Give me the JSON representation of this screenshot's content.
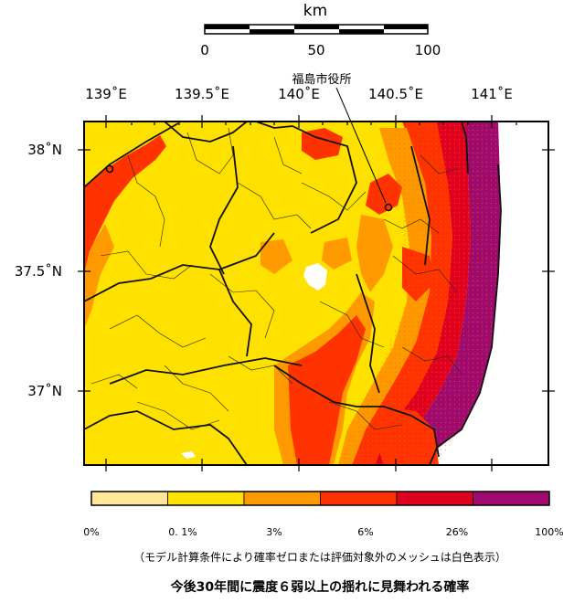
{
  "scale_bar": {
    "title": "km",
    "ticks": [
      "0",
      "50",
      "100"
    ]
  },
  "city_label": "福島市役所",
  "axes": {
    "longitude_labels": [
      "139˚E",
      "139.5˚E",
      "140˚E",
      "140.5˚E",
      "141˚E"
    ],
    "latitude_labels": [
      "38˚N",
      "37.5˚N",
      "37˚N"
    ]
  },
  "legend": {
    "ticks": [
      "0%",
      "0. 1%",
      "3%",
      "6%",
      "26%",
      "100%"
    ],
    "colors": [
      "#ffe699",
      "#ffe100",
      "#ff9900",
      "#ff3300",
      "#e00020",
      "#9e0a6e"
    ],
    "note": "（モデル計算条件により確率ゼロまたは評価対象外のメッシュは白色表示）"
  },
  "caption": "今後30年間に震度６弱以上の揺れに見舞われる確率"
}
